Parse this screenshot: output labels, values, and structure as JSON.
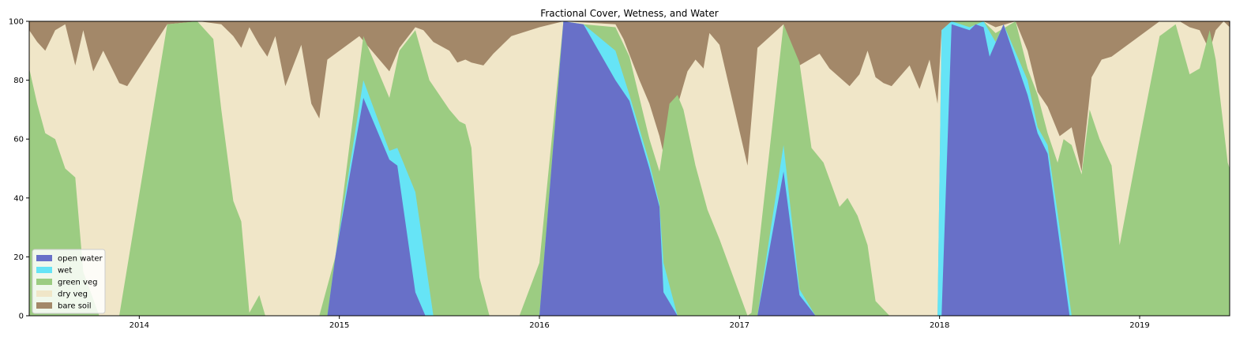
{
  "chart_data": {
    "type": "area",
    "stacked": true,
    "title": "Fractional Cover, Wetness, and Water",
    "xlabel": "",
    "ylabel": "",
    "xlim": [
      2013.45,
      2019.45
    ],
    "ylim": [
      0,
      100
    ],
    "xticks": [
      2014,
      2015,
      2016,
      2017,
      2018,
      2019
    ],
    "xtick_labels": [
      "2014",
      "2015",
      "2016",
      "2017",
      "2018",
      "2019"
    ],
    "yticks": [
      0,
      20,
      40,
      60,
      80,
      100
    ],
    "ytick_labels": [
      "0",
      "20",
      "40",
      "60",
      "80",
      "100"
    ],
    "grid": false,
    "legend_position": "lower-left",
    "series": [
      {
        "name": "open water",
        "color": "#6870c8",
        "points": [
          [
            2013.45,
            0
          ],
          [
            2014.94,
            0
          ],
          [
            2014.98,
            20
          ],
          [
            2015.12,
            74
          ],
          [
            2015.25,
            53
          ],
          [
            2015.29,
            51
          ],
          [
            2015.38,
            8
          ],
          [
            2015.43,
            0
          ],
          [
            2016.0,
            0
          ],
          [
            2016.12,
            100
          ],
          [
            2016.22,
            99
          ],
          [
            2016.38,
            80
          ],
          [
            2016.45,
            73
          ],
          [
            2016.55,
            50
          ],
          [
            2016.6,
            37
          ],
          [
            2016.62,
            8
          ],
          [
            2016.69,
            0
          ],
          [
            2017.09,
            0
          ],
          [
            2017.22,
            49
          ],
          [
            2017.3,
            7
          ],
          [
            2017.38,
            0
          ],
          [
            2018.01,
            0
          ],
          [
            2018.06,
            99
          ],
          [
            2018.15,
            97
          ],
          [
            2018.18,
            99
          ],
          [
            2018.22,
            98
          ],
          [
            2018.25,
            88
          ],
          [
            2018.32,
            99
          ],
          [
            2018.44,
            75
          ],
          [
            2018.49,
            62
          ],
          [
            2018.54,
            55
          ],
          [
            2018.65,
            0
          ],
          [
            2019.45,
            0
          ]
        ]
      },
      {
        "name": "wet",
        "color": "#66e4f6",
        "points": [
          [
            2013.45,
            0
          ],
          [
            2014.94,
            0
          ],
          [
            2014.98,
            20
          ],
          [
            2015.12,
            80
          ],
          [
            2015.25,
            56
          ],
          [
            2015.29,
            57
          ],
          [
            2015.38,
            42
          ],
          [
            2015.47,
            0
          ],
          [
            2016.0,
            0
          ],
          [
            2016.12,
            100
          ],
          [
            2016.22,
            99
          ],
          [
            2016.38,
            90
          ],
          [
            2016.45,
            75
          ],
          [
            2016.55,
            52
          ],
          [
            2016.6,
            38
          ],
          [
            2016.62,
            18
          ],
          [
            2016.69,
            0
          ],
          [
            2017.09,
            0
          ],
          [
            2017.22,
            58
          ],
          [
            2017.3,
            9
          ],
          [
            2017.38,
            0
          ],
          [
            2017.99,
            0
          ],
          [
            2018.01,
            97
          ],
          [
            2018.06,
            100
          ],
          [
            2018.15,
            98
          ],
          [
            2018.22,
            100
          ],
          [
            2018.28,
            93
          ],
          [
            2018.32,
            99
          ],
          [
            2018.44,
            80
          ],
          [
            2018.49,
            64
          ],
          [
            2018.54,
            58
          ],
          [
            2018.59,
            35
          ],
          [
            2018.66,
            0
          ],
          [
            2019.45,
            0
          ]
        ]
      },
      {
        "name": "green veg",
        "color": "#9ccc82",
        "points": [
          [
            2013.45,
            84
          ],
          [
            2013.49,
            72
          ],
          [
            2013.53,
            62
          ],
          [
            2013.58,
            60
          ],
          [
            2013.63,
            50
          ],
          [
            2013.68,
            47
          ],
          [
            2013.72,
            15
          ],
          [
            2013.8,
            0
          ],
          [
            2013.9,
            0
          ],
          [
            2014.14,
            99
          ],
          [
            2014.29,
            100
          ],
          [
            2014.37,
            94
          ],
          [
            2014.41,
            70
          ],
          [
            2014.47,
            39
          ],
          [
            2014.51,
            32
          ],
          [
            2014.55,
            1
          ],
          [
            2014.6,
            7
          ],
          [
            2014.63,
            0
          ],
          [
            2014.9,
            0
          ],
          [
            2014.98,
            20
          ],
          [
            2015.12,
            95
          ],
          [
            2015.25,
            74
          ],
          [
            2015.3,
            90
          ],
          [
            2015.38,
            97
          ],
          [
            2015.45,
            80
          ],
          [
            2015.55,
            70
          ],
          [
            2015.6,
            66
          ],
          [
            2015.63,
            65
          ],
          [
            2015.66,
            57
          ],
          [
            2015.7,
            13
          ],
          [
            2015.75,
            0
          ],
          [
            2015.9,
            0
          ],
          [
            2016.0,
            18
          ],
          [
            2016.12,
            100
          ],
          [
            2016.22,
            99
          ],
          [
            2016.38,
            98
          ],
          [
            2016.45,
            88
          ],
          [
            2016.55,
            60
          ],
          [
            2016.6,
            49
          ],
          [
            2016.65,
            72
          ],
          [
            2016.69,
            75
          ],
          [
            2016.72,
            70
          ],
          [
            2016.78,
            51
          ],
          [
            2016.84,
            36
          ],
          [
            2016.9,
            26
          ],
          [
            2017.04,
            0
          ],
          [
            2017.06,
            1
          ],
          [
            2017.22,
            99
          ],
          [
            2017.3,
            86
          ],
          [
            2017.36,
            57
          ],
          [
            2017.42,
            52
          ],
          [
            2017.5,
            37
          ],
          [
            2017.54,
            40
          ],
          [
            2017.59,
            34
          ],
          [
            2017.64,
            24
          ],
          [
            2017.68,
            5
          ],
          [
            2017.75,
            0
          ],
          [
            2017.99,
            0
          ],
          [
            2018.01,
            97
          ],
          [
            2018.06,
            100
          ],
          [
            2018.22,
            100
          ],
          [
            2018.28,
            96
          ],
          [
            2018.38,
            100
          ],
          [
            2018.44,
            84
          ],
          [
            2018.49,
            75
          ],
          [
            2018.54,
            62
          ],
          [
            2018.59,
            52
          ],
          [
            2018.62,
            60
          ],
          [
            2018.66,
            58
          ],
          [
            2018.71,
            48
          ],
          [
            2018.75,
            70
          ],
          [
            2018.8,
            60
          ],
          [
            2018.86,
            51
          ],
          [
            2018.9,
            24
          ],
          [
            2019.0,
            60
          ],
          [
            2019.1,
            95
          ],
          [
            2019.18,
            99
          ],
          [
            2019.25,
            82
          ],
          [
            2019.3,
            84
          ],
          [
            2019.35,
            97
          ],
          [
            2019.38,
            87
          ],
          [
            2019.44,
            52
          ],
          [
            2019.45,
            50
          ]
        ]
      },
      {
        "name": "dry veg",
        "color": "#f0e6c8",
        "points": [
          [
            2013.45,
            97
          ],
          [
            2013.49,
            93
          ],
          [
            2013.53,
            90
          ],
          [
            2013.58,
            97
          ],
          [
            2013.63,
            99
          ],
          [
            2013.68,
            85
          ],
          [
            2013.72,
            97
          ],
          [
            2013.77,
            83
          ],
          [
            2013.82,
            90
          ],
          [
            2013.9,
            79
          ],
          [
            2013.94,
            78
          ],
          [
            2014.14,
            99
          ],
          [
            2014.3,
            100
          ],
          [
            2014.41,
            99
          ],
          [
            2014.47,
            95
          ],
          [
            2014.51,
            91
          ],
          [
            2014.55,
            98
          ],
          [
            2014.6,
            92
          ],
          [
            2014.64,
            88
          ],
          [
            2014.68,
            95
          ],
          [
            2014.73,
            78
          ],
          [
            2014.81,
            92
          ],
          [
            2014.86,
            72
          ],
          [
            2014.9,
            67
          ],
          [
            2014.94,
            87
          ],
          [
            2015.1,
            95
          ],
          [
            2015.25,
            83
          ],
          [
            2015.3,
            91
          ],
          [
            2015.38,
            98
          ],
          [
            2015.42,
            97
          ],
          [
            2015.47,
            93
          ],
          [
            2015.55,
            90
          ],
          [
            2015.59,
            86
          ],
          [
            2015.63,
            87
          ],
          [
            2015.66,
            86
          ],
          [
            2015.72,
            85
          ],
          [
            2015.77,
            89
          ],
          [
            2015.86,
            95
          ],
          [
            2016.0,
            98
          ],
          [
            2016.12,
            100
          ],
          [
            2016.38,
            99
          ],
          [
            2016.42,
            94
          ],
          [
            2016.5,
            80
          ],
          [
            2016.55,
            72
          ],
          [
            2016.6,
            61
          ],
          [
            2016.62,
            55
          ],
          [
            2016.74,
            83
          ],
          [
            2016.78,
            87
          ],
          [
            2016.82,
            84
          ],
          [
            2016.85,
            96
          ],
          [
            2016.9,
            92
          ],
          [
            2017.04,
            51
          ],
          [
            2017.09,
            91
          ],
          [
            2017.22,
            99
          ],
          [
            2017.3,
            85
          ],
          [
            2017.4,
            89
          ],
          [
            2017.45,
            84
          ],
          [
            2017.55,
            78
          ],
          [
            2017.6,
            82
          ],
          [
            2017.64,
            90
          ],
          [
            2017.68,
            81
          ],
          [
            2017.72,
            79
          ],
          [
            2017.76,
            78
          ],
          [
            2017.85,
            85
          ],
          [
            2017.9,
            77
          ],
          [
            2017.95,
            87
          ],
          [
            2017.99,
            72
          ],
          [
            2018.01,
            97
          ],
          [
            2018.06,
            100
          ],
          [
            2018.22,
            100
          ],
          [
            2018.28,
            98
          ],
          [
            2018.38,
            100
          ],
          [
            2018.44,
            90
          ],
          [
            2018.49,
            76
          ],
          [
            2018.54,
            71
          ],
          [
            2018.6,
            61
          ],
          [
            2018.66,
            64
          ],
          [
            2018.71,
            49
          ],
          [
            2018.76,
            81
          ],
          [
            2018.81,
            87
          ],
          [
            2018.86,
            88
          ],
          [
            2019.1,
            100
          ],
          [
            2019.2,
            100
          ],
          [
            2019.25,
            98
          ],
          [
            2019.3,
            97
          ],
          [
            2019.35,
            90
          ],
          [
            2019.38,
            97
          ],
          [
            2019.42,
            100
          ],
          [
            2019.45,
            98
          ]
        ]
      },
      {
        "name": "bare soil",
        "color": "#a38869",
        "points": [
          [
            2013.45,
            100
          ],
          [
            2019.45,
            100
          ]
        ]
      }
    ]
  }
}
